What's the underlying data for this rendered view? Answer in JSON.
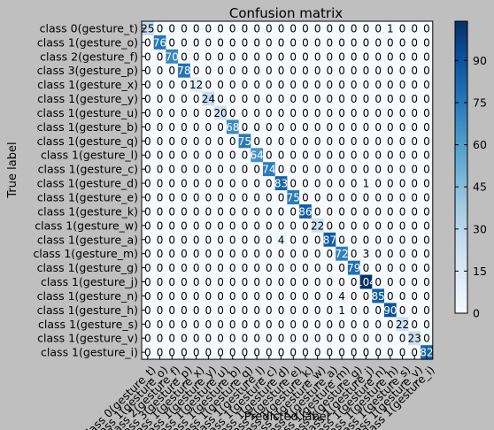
{
  "chart_data": {
    "type": "heatmap",
    "title": "Confusion matrix",
    "xlabel": "Predicted label",
    "ylabel": "True label",
    "labels": [
      "class 0(gesture_t)",
      "class 1(gesture_o)",
      "class 2(gesture_f)",
      "class 3(gesture_p)",
      "class 1(gesture_x)",
      "class 1(gesture_y)",
      "class 1(gesture_u)",
      "class 1(gesture_b)",
      "class 1(gesture_q)",
      "class 1(gesture_l)",
      "class 1(gesture_c)",
      "class 1(gesture_d)",
      "class 1(gesture_e)",
      "class 1(gesture_k)",
      "class 1(gesture_w)",
      "class 1(gesture_a)",
      "class 1(gesture_m)",
      "class 1(gesture_g)",
      "class 1(gesture_j)",
      "class 1(gesture_n)",
      "class 1(gesture_h)",
      "class 1(gesture_s)",
      "class 1(gesture_v)",
      "class 1(gesture_i)"
    ],
    "matrix": [
      [
        25,
        0,
        0,
        0,
        0,
        0,
        0,
        0,
        0,
        0,
        0,
        0,
        0,
        0,
        0,
        0,
        0,
        0,
        0,
        0,
        1,
        0,
        0,
        0
      ],
      [
        0,
        76,
        0,
        0,
        0,
        0,
        0,
        0,
        0,
        0,
        0,
        0,
        0,
        0,
        0,
        0,
        0,
        0,
        0,
        0,
        0,
        0,
        0,
        0
      ],
      [
        0,
        0,
        70,
        0,
        0,
        0,
        0,
        0,
        0,
        0,
        0,
        0,
        0,
        0,
        0,
        0,
        0,
        0,
        0,
        0,
        0,
        0,
        0,
        0
      ],
      [
        0,
        0,
        0,
        78,
        0,
        0,
        0,
        0,
        0,
        0,
        0,
        0,
        0,
        0,
        0,
        0,
        0,
        0,
        0,
        0,
        0,
        0,
        0,
        0
      ],
      [
        0,
        0,
        0,
        0,
        12,
        0,
        0,
        0,
        0,
        0,
        0,
        0,
        0,
        0,
        0,
        0,
        0,
        0,
        0,
        0,
        0,
        0,
        0,
        0
      ],
      [
        0,
        0,
        0,
        0,
        0,
        24,
        0,
        0,
        0,
        0,
        0,
        0,
        0,
        0,
        0,
        0,
        0,
        0,
        0,
        0,
        0,
        0,
        0,
        0
      ],
      [
        0,
        0,
        0,
        0,
        0,
        0,
        20,
        0,
        0,
        0,
        0,
        0,
        0,
        0,
        0,
        0,
        0,
        0,
        0,
        0,
        0,
        0,
        0,
        0
      ],
      [
        0,
        0,
        0,
        0,
        0,
        0,
        0,
        68,
        0,
        0,
        0,
        0,
        0,
        0,
        0,
        0,
        0,
        0,
        0,
        0,
        0,
        0,
        0,
        0
      ],
      [
        0,
        0,
        0,
        0,
        0,
        0,
        0,
        0,
        75,
        0,
        0,
        0,
        0,
        0,
        0,
        0,
        0,
        0,
        0,
        0,
        0,
        0,
        0,
        0
      ],
      [
        0,
        0,
        0,
        0,
        0,
        0,
        0,
        0,
        0,
        64,
        0,
        0,
        0,
        0,
        0,
        0,
        0,
        0,
        0,
        0,
        0,
        0,
        0,
        0
      ],
      [
        0,
        0,
        0,
        0,
        0,
        0,
        0,
        0,
        0,
        0,
        74,
        0,
        0,
        0,
        0,
        0,
        0,
        0,
        0,
        0,
        0,
        0,
        0,
        0
      ],
      [
        0,
        0,
        0,
        0,
        0,
        0,
        0,
        0,
        0,
        0,
        0,
        83,
        0,
        0,
        0,
        0,
        0,
        0,
        1,
        0,
        0,
        0,
        0,
        0
      ],
      [
        0,
        0,
        0,
        0,
        0,
        0,
        0,
        0,
        0,
        0,
        0,
        0,
        75,
        0,
        0,
        0,
        0,
        0,
        0,
        0,
        0,
        0,
        0,
        0
      ],
      [
        0,
        0,
        0,
        0,
        0,
        0,
        0,
        0,
        0,
        0,
        0,
        0,
        0,
        86,
        0,
        0,
        0,
        0,
        0,
        0,
        0,
        0,
        0,
        0
      ],
      [
        0,
        0,
        0,
        0,
        0,
        0,
        0,
        0,
        0,
        0,
        0,
        0,
        0,
        0,
        22,
        0,
        0,
        0,
        0,
        0,
        0,
        0,
        0,
        0
      ],
      [
        0,
        0,
        0,
        0,
        0,
        0,
        0,
        0,
        0,
        0,
        0,
        4,
        0,
        0,
        0,
        87,
        0,
        0,
        0,
        0,
        0,
        0,
        0,
        0
      ],
      [
        0,
        0,
        0,
        0,
        0,
        0,
        0,
        0,
        0,
        0,
        0,
        0,
        0,
        0,
        0,
        0,
        72,
        0,
        3,
        0,
        0,
        0,
        0,
        0
      ],
      [
        0,
        0,
        0,
        0,
        0,
        0,
        0,
        0,
        0,
        0,
        0,
        0,
        0,
        0,
        0,
        0,
        0,
        79,
        0,
        0,
        0,
        0,
        0,
        0
      ],
      [
        0,
        0,
        0,
        0,
        0,
        0,
        0,
        0,
        0,
        0,
        0,
        0,
        0,
        0,
        0,
        0,
        0,
        0,
        104,
        0,
        0,
        0,
        0,
        0
      ],
      [
        0,
        0,
        0,
        0,
        0,
        0,
        0,
        0,
        0,
        0,
        0,
        0,
        0,
        0,
        0,
        0,
        4,
        0,
        0,
        85,
        0,
        0,
        0,
        0
      ],
      [
        0,
        0,
        0,
        0,
        0,
        0,
        0,
        0,
        0,
        0,
        0,
        0,
        0,
        0,
        0,
        0,
        1,
        0,
        0,
        0,
        90,
        0,
        0,
        0
      ],
      [
        0,
        0,
        0,
        0,
        0,
        0,
        0,
        0,
        0,
        0,
        0,
        0,
        0,
        0,
        0,
        0,
        0,
        0,
        0,
        0,
        0,
        22,
        0,
        0
      ],
      [
        0,
        0,
        0,
        0,
        0,
        0,
        0,
        0,
        0,
        0,
        0,
        0,
        0,
        0,
        0,
        0,
        0,
        0,
        0,
        0,
        0,
        0,
        23,
        0
      ],
      [
        0,
        0,
        0,
        0,
        0,
        0,
        0,
        0,
        0,
        0,
        0,
        0,
        0,
        0,
        0,
        0,
        0,
        0,
        0,
        0,
        0,
        0,
        0,
        82
      ]
    ],
    "colorbar": {
      "colormap": "Blues",
      "vmin": 0,
      "vmax": 104,
      "ticks": [
        0,
        15,
        30,
        45,
        60,
        75,
        90
      ]
    },
    "grid": false,
    "legend": "colorbar-right"
  }
}
